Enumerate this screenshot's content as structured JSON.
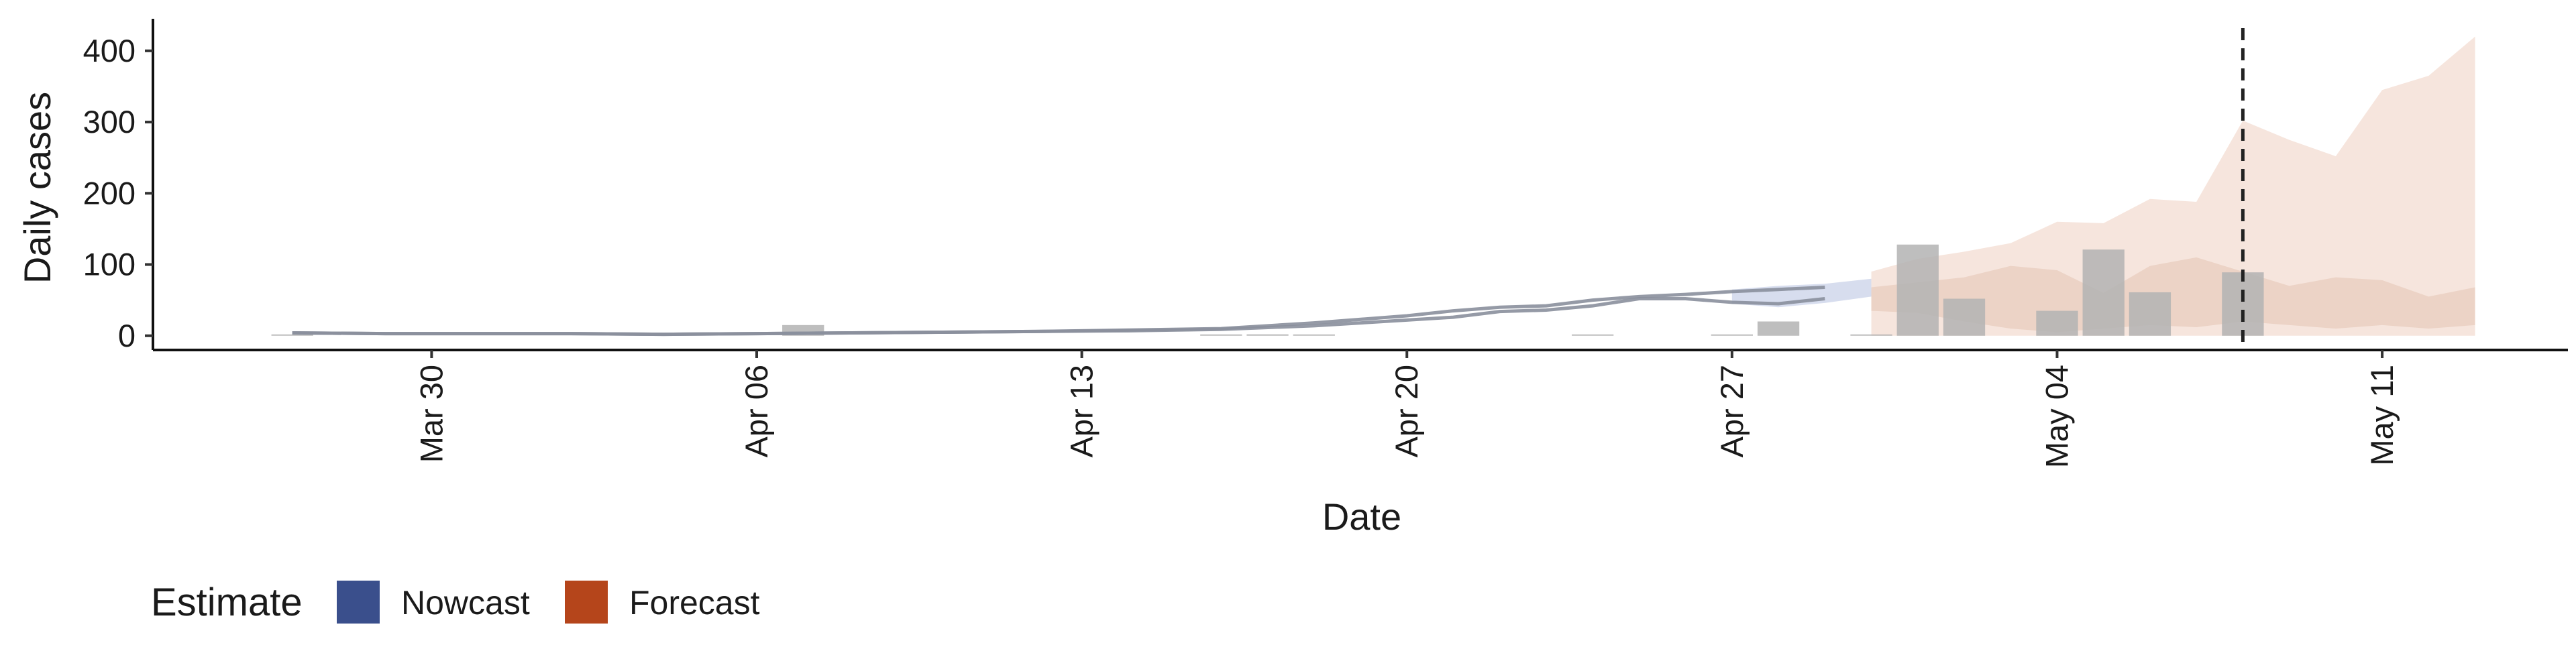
{
  "chart_data": {
    "type": "bar",
    "xlabel": "Date",
    "ylabel": "Daily cases",
    "y_ticks": [
      0,
      100,
      200,
      300,
      400
    ],
    "ylim": [
      -20,
      445
    ],
    "x_range": [
      "2020-03-24",
      "2020-05-15"
    ],
    "x_ticks": [
      {
        "date": "2020-03-30",
        "label": "Mar 30"
      },
      {
        "date": "2020-04-06",
        "label": "Apr 06"
      },
      {
        "date": "2020-04-13",
        "label": "Apr 13"
      },
      {
        "date": "2020-04-20",
        "label": "Apr 20"
      },
      {
        "date": "2020-04-27",
        "label": "Apr 27"
      },
      {
        "date": "2020-05-04",
        "label": "May 04"
      },
      {
        "date": "2020-05-11",
        "label": "May 11"
      }
    ],
    "reference_line_date": "2020-05-08",
    "grid": false,
    "legend": {
      "title": "Estimate",
      "position": "bottom-left"
    },
    "observed_bars": [
      {
        "date": "2020-03-27",
        "value": 0
      },
      {
        "date": "2020-04-07",
        "value": 15
      },
      {
        "date": "2020-04-16",
        "value": 1
      },
      {
        "date": "2020-04-17",
        "value": 2
      },
      {
        "date": "2020-04-18",
        "value": 1
      },
      {
        "date": "2020-04-24",
        "value": 1
      },
      {
        "date": "2020-04-27",
        "value": 1
      },
      {
        "date": "2020-04-28",
        "value": 20
      },
      {
        "date": "2020-04-30",
        "value": 1
      },
      {
        "date": "2020-05-01",
        "value": 128
      },
      {
        "date": "2020-05-02",
        "value": 52
      },
      {
        "date": "2020-05-04",
        "value": 35
      },
      {
        "date": "2020-05-05",
        "value": 121
      },
      {
        "date": "2020-05-06",
        "value": 61
      },
      {
        "date": "2020-05-08",
        "value": 89
      }
    ],
    "estimate_lines": [
      {
        "name": "Nowcast",
        "values": [
          [
            "2020-03-27",
            4
          ],
          [
            "2020-03-29",
            3
          ],
          [
            "2020-03-31",
            3
          ],
          [
            "2020-04-02",
            3
          ],
          [
            "2020-04-04",
            2
          ],
          [
            "2020-04-06",
            3
          ],
          [
            "2020-04-08",
            4
          ],
          [
            "2020-04-10",
            5
          ],
          [
            "2020-04-12",
            6
          ],
          [
            "2020-04-14",
            8
          ],
          [
            "2020-04-16",
            10
          ],
          [
            "2020-04-18",
            18
          ],
          [
            "2020-04-20",
            28
          ],
          [
            "2020-04-21",
            35
          ],
          [
            "2020-04-22",
            40
          ],
          [
            "2020-04-23",
            42
          ],
          [
            "2020-04-24",
            50
          ],
          [
            "2020-04-25",
            55
          ],
          [
            "2020-04-26",
            58
          ],
          [
            "2020-04-27",
            62
          ],
          [
            "2020-04-28",
            65
          ],
          [
            "2020-04-29",
            68
          ]
        ]
      },
      {
        "name": "Nowcast",
        "values": [
          [
            "2020-03-27",
            4
          ],
          [
            "2020-03-29",
            3
          ],
          [
            "2020-03-31",
            3
          ],
          [
            "2020-04-02",
            3
          ],
          [
            "2020-04-04",
            2
          ],
          [
            "2020-04-06",
            3
          ],
          [
            "2020-04-08",
            4
          ],
          [
            "2020-04-10",
            5
          ],
          [
            "2020-04-12",
            6
          ],
          [
            "2020-04-14",
            7
          ],
          [
            "2020-04-16",
            9
          ],
          [
            "2020-04-18",
            14
          ],
          [
            "2020-04-20",
            22
          ],
          [
            "2020-04-21",
            26
          ],
          [
            "2020-04-22",
            34
          ],
          [
            "2020-04-23",
            36
          ],
          [
            "2020-04-24",
            42
          ],
          [
            "2020-04-25",
            52
          ],
          [
            "2020-04-26",
            52
          ],
          [
            "2020-04-27",
            47
          ],
          [
            "2020-04-28",
            45
          ],
          [
            "2020-04-29",
            52
          ]
        ]
      }
    ],
    "nowcast_band": {
      "dates": [
        "2020-04-27",
        "2020-04-28",
        "2020-04-29",
        "2020-04-30"
      ],
      "lower": [
        45,
        40,
        46,
        55
      ],
      "upper": [
        65,
        70,
        73,
        80
      ]
    },
    "forecast_outer": {
      "dates": [
        "2020-04-30",
        "2020-05-01",
        "2020-05-02",
        "2020-05-03",
        "2020-05-04",
        "2020-05-05",
        "2020-05-06",
        "2020-05-07",
        "2020-05-08",
        "2020-05-09",
        "2020-05-10",
        "2020-05-11",
        "2020-05-12",
        "2020-05-13"
      ],
      "lower": [
        0,
        0,
        0,
        0,
        0,
        0,
        0,
        0,
        0,
        0,
        0,
        0,
        0,
        0
      ],
      "upper": [
        90,
        108,
        118,
        130,
        160,
        158,
        192,
        188,
        302,
        275,
        252,
        345,
        365,
        420
      ]
    },
    "forecast_inner": {
      "dates": [
        "2020-04-30",
        "2020-05-01",
        "2020-05-02",
        "2020-05-03",
        "2020-05-04",
        "2020-05-05",
        "2020-05-06",
        "2020-05-07",
        "2020-05-08",
        "2020-05-09",
        "2020-05-10",
        "2020-05-11",
        "2020-05-12",
        "2020-05-13"
      ],
      "lower": [
        35,
        32,
        20,
        10,
        5,
        10,
        15,
        12,
        20,
        15,
        10,
        15,
        10,
        15
      ],
      "upper": [
        68,
        75,
        82,
        98,
        92,
        60,
        98,
        110,
        90,
        70,
        82,
        78,
        55,
        68
      ]
    },
    "colors": {
      "nowcast": "#3a4f8c",
      "forecast": "#b5451b",
      "bar": "#b3b3b3",
      "line": "#8a8f9c",
      "forecast_outer": "#f5e1d7",
      "forecast_inner": "#ead0c2",
      "nowcast_band": "#cdd5ea"
    }
  },
  "legend": {
    "title": "Estimate",
    "items": [
      {
        "label": "Nowcast",
        "color": "#3a4f8c"
      },
      {
        "label": "Forecast",
        "color": "#b5451b"
      }
    ]
  }
}
